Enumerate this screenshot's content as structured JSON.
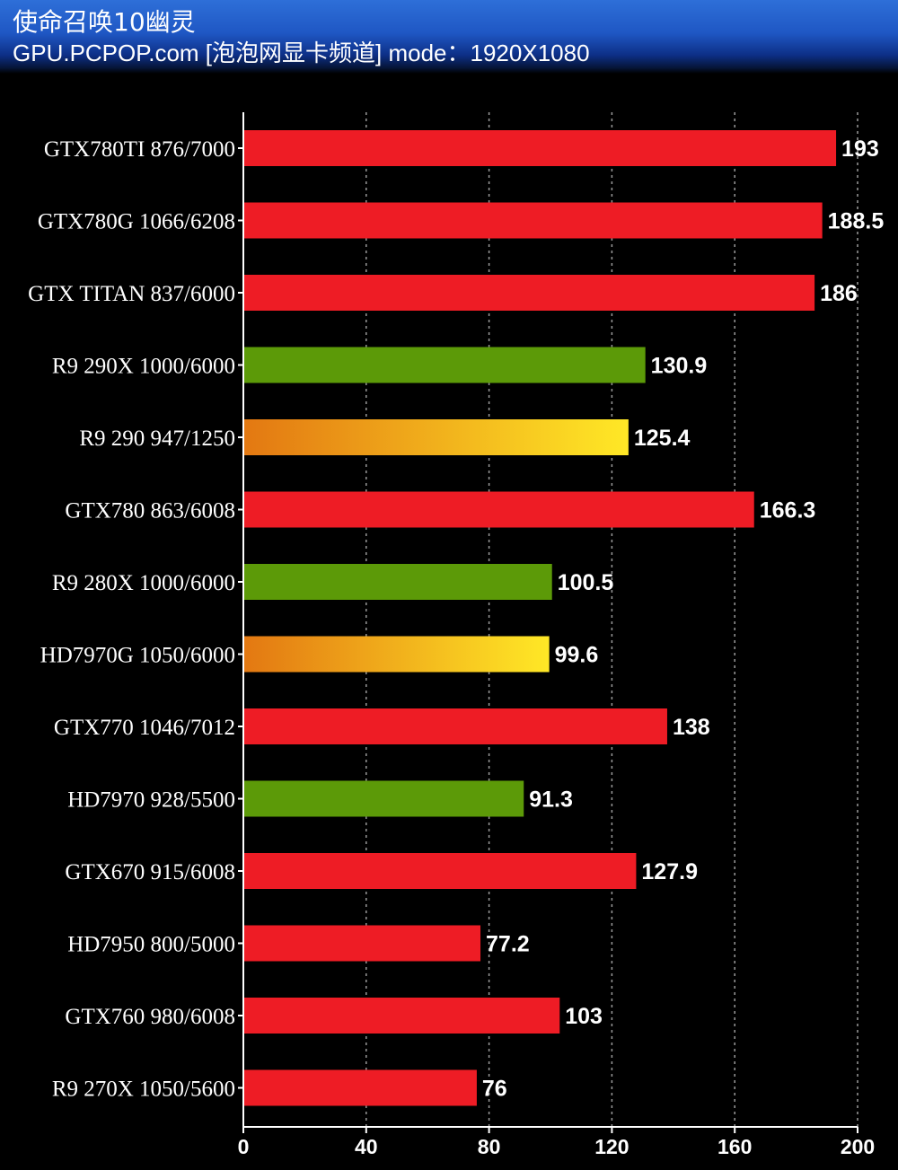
{
  "header": {
    "title": "使命召唤10幽灵",
    "subtitle": "GPU.PCPOP.com [泡泡网显卡频道] mode：1920X1080"
  },
  "colors": {
    "background": "#000000",
    "red": "#ee1c25",
    "green": "#5c9a08",
    "gradient_start": "#e37812",
    "gradient_end": "#ffe826",
    "gridline": "#9a9a9a",
    "axis": "#ffffff"
  },
  "chart_data": {
    "type": "bar",
    "orientation": "horizontal",
    "title": "使命召唤10幽灵",
    "subtitle": "GPU.PCPOP.com [泡泡网显卡频道] mode：1920X1080",
    "xlabel": "",
    "ylabel": "",
    "xlim": [
      0,
      200
    ],
    "xticks": [
      0,
      40,
      80,
      120,
      160,
      200
    ],
    "grid": "vertical dashed",
    "legend": "none",
    "categories": [
      "GTX780TI 876/7000",
      "GTX780G 1066/6208",
      "GTX TITAN 837/6000",
      "R9 290X 1000/6000",
      "R9 290 947/1250",
      "GTX780 863/6008",
      "R9 280X  1000/6000",
      "HD7970G 1050/6000",
      "GTX770 1046/7012",
      "HD7970 928/5500",
      "GTX670 915/6008",
      "HD7950 800/5000",
      "GTX760 980/6008",
      "R9 270X 1050/5600"
    ],
    "values": [
      193,
      188.5,
      186,
      130.9,
      125.4,
      166.3,
      100.5,
      99.6,
      138,
      91.3,
      127.9,
      77.2,
      103,
      76
    ],
    "value_labels": [
      "193",
      "188.5",
      "186",
      "130.9",
      "125.4",
      "166.3",
      "100.5",
      "99.6",
      "138",
      "91.3",
      "127.9",
      "77.2",
      "103",
      "76"
    ],
    "bar_styles": [
      "red",
      "red",
      "red",
      "green",
      "gradient",
      "red",
      "green",
      "gradient",
      "red",
      "green",
      "red",
      "red",
      "red",
      "red"
    ]
  }
}
